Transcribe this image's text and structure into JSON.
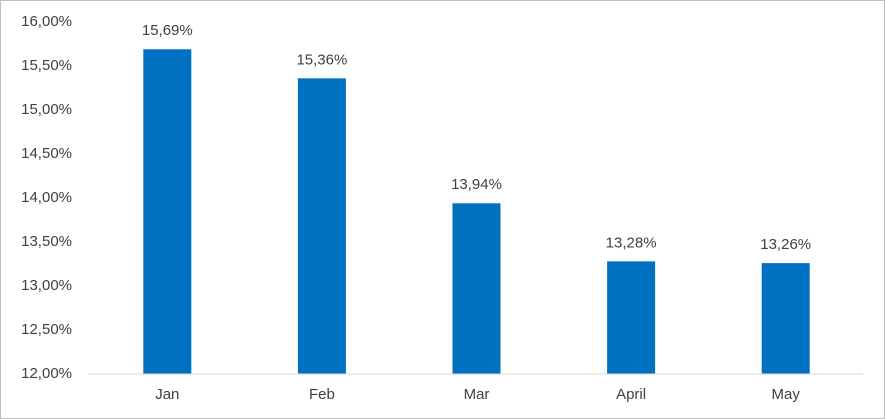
{
  "chart_data": {
    "type": "bar",
    "categories": [
      "Jan",
      "Feb",
      "Mar",
      "April",
      "May"
    ],
    "values": [
      15.69,
      15.36,
      13.94,
      13.28,
      13.26
    ],
    "value_labels": [
      "15,69%",
      "15,36%",
      "13,94%",
      "13,28%",
      "13,26%"
    ],
    "color": "#0070c0",
    "ylim": [
      12,
      16
    ],
    "yticks": [
      {
        "value": 12,
        "label": "12,00%"
      },
      {
        "value": 12.5,
        "label": "12,50%"
      },
      {
        "value": 13,
        "label": "13,00%"
      },
      {
        "value": 13.5,
        "label": "13,50%"
      },
      {
        "value": 14,
        "label": "14,00%"
      },
      {
        "value": 14.5,
        "label": "14,50%"
      },
      {
        "value": 15,
        "label": "15,00%"
      },
      {
        "value": 15.5,
        "label": "15,50%"
      },
      {
        "value": 16,
        "label": "16,00%"
      }
    ],
    "grid": false
  }
}
